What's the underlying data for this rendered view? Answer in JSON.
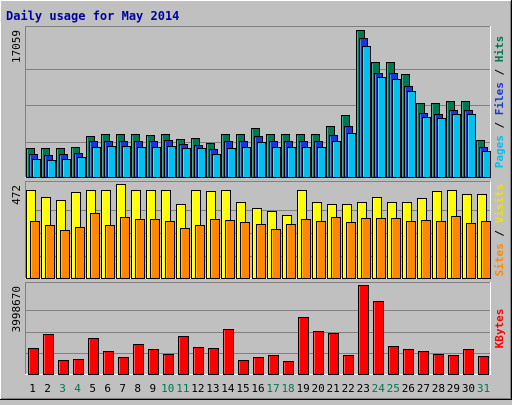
{
  "chart_data": {
    "type": "bar",
    "title": "Daily usage for May 2014",
    "categories": [
      "1",
      "2",
      "3",
      "4",
      "5",
      "6",
      "7",
      "8",
      "9",
      "10",
      "11",
      "12",
      "13",
      "14",
      "15",
      "16",
      "17",
      "18",
      "19",
      "20",
      "21",
      "22",
      "23",
      "24",
      "25",
      "26",
      "27",
      "28",
      "29",
      "30",
      "31"
    ],
    "weekend_days": [
      "3",
      "4",
      "10",
      "11",
      "17",
      "18",
      "24",
      "25",
      "31"
    ],
    "panels": [
      {
        "id": "hits",
        "max_label": "17059",
        "ylim": [
          0,
          17059
        ],
        "axis_label_parts": [
          {
            "text": "Pages",
            "color": "#00c0f0"
          },
          {
            "text": " / ",
            "color": "#000000"
          },
          {
            "text": "Files",
            "color": "#1838d8"
          },
          {
            "text": " / ",
            "color": "#000000"
          },
          {
            "text": "Hits",
            "color": "#007850"
          }
        ],
        "series": [
          {
            "name": "Hits",
            "color": "#007850",
            "values": [
              3400,
              3300,
              3400,
              3500,
              4700,
              4900,
              4900,
              4900,
              4800,
              5000,
              4400,
              4500,
              3900,
              5000,
              5000,
              5600,
              5000,
              5000,
              5000,
              5000,
              5900,
              7100,
              17000,
              13300,
              13300,
              11900,
              8500,
              8500,
              8800,
              8800,
              4300
            ]
          },
          {
            "name": "Files",
            "color": "#1838d8",
            "values": [
              2700,
              2500,
              2600,
              2800,
              4100,
              4200,
              4200,
              4200,
              4200,
              4300,
              3800,
              3700,
              3200,
              4100,
              4200,
              4700,
              4200,
              4200,
              4200,
              4200,
              4800,
              5900,
              16000,
              12000,
              12000,
              10500,
              7400,
              7300,
              7700,
              7700,
              3500
            ]
          },
          {
            "name": "Pages",
            "color": "#00c0f0",
            "values": [
              2100,
              2000,
              2100,
              2300,
              3500,
              3600,
              3600,
              3500,
              3500,
              3600,
              3300,
              3300,
              2700,
              3400,
              3500,
              4000,
              3500,
              3500,
              3500,
              3500,
              4100,
              5100,
              15100,
              11500,
              11300,
              9900,
              6900,
              6800,
              7300,
              7300,
              3000
            ]
          }
        ]
      },
      {
        "id": "visits",
        "max_label": "472",
        "ylim": [
          0,
          472
        ],
        "axis_label_parts": [
          {
            "text": "Sites",
            "color": "#ff8800"
          },
          {
            "text": " / ",
            "color": "#000000"
          },
          {
            "text": "Visits",
            "color": "#f0e000"
          }
        ],
        "series": [
          {
            "name": "Visits",
            "color": "#ffff00",
            "values": [
              440,
              408,
              392,
              430,
              440,
              440,
              472,
              440,
              440,
              440,
              372,
              440,
              436,
              440,
              380,
              352,
              336,
              316,
              440,
              384,
              372,
              372,
              384,
              408,
              384,
              380,
              400,
              436,
              440,
              420,
              420
            ]
          },
          {
            "name": "Sites",
            "color": "#ff8800",
            "values": [
              288,
              264,
              240,
              256,
              328,
              268,
              308,
              296,
              296,
              288,
              252,
              264,
              296,
              292,
              280,
              272,
              248,
              272,
              296,
              288,
              304,
              280,
              300,
              300,
              300,
              284,
              292,
              284,
              312,
              276,
              284
            ]
          }
        ]
      },
      {
        "id": "kbytes",
        "max_label": "3998670",
        "ylim": [
          0,
          3998670
        ],
        "axis_label_parts": [
          {
            "text": "KBytes",
            "color": "#ff0000"
          }
        ],
        "series": [
          {
            "name": "KBytes",
            "color": "#ff0000",
            "values": [
              1180000,
              1780000,
              630000,
              660000,
              1620000,
              1050000,
              780000,
              1360000,
              1130000,
              920000,
              1700000,
              1220000,
              1180000,
              2010000,
              650000,
              780000,
              850000,
              570000,
              2570000,
              1910000,
              1840000,
              850000,
              3980000,
              3260000,
              1260000,
              1110000,
              1020000,
              910000,
              870000,
              1140000,
              830000
            ]
          }
        ]
      }
    ]
  }
}
